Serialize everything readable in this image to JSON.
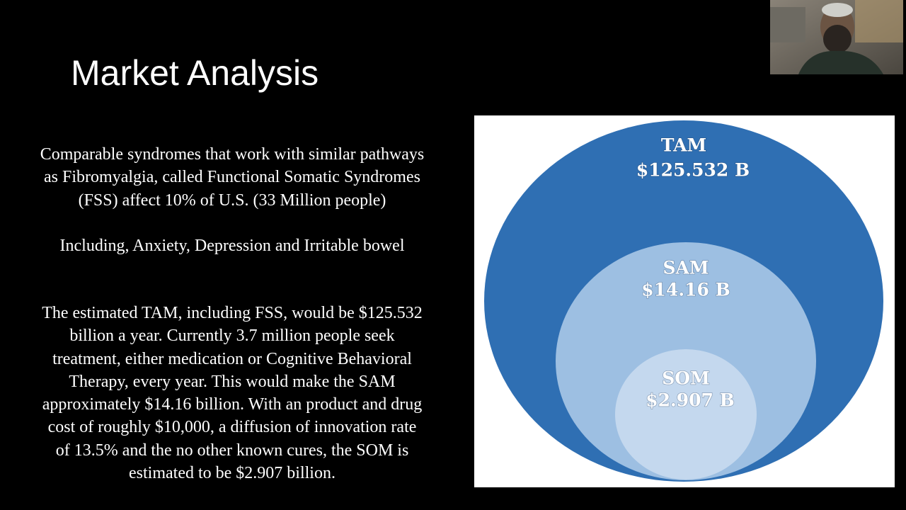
{
  "slide": {
    "title": "Market Analysis",
    "paragraphs": [
      [
        "Comparable syndromes that work with similar pathways",
        "as Fibromyalgia, called Functional Somatic Syndromes",
        "(FSS) affect 10% of U.S. (33 Million people)"
      ],
      [
        "Including, Anxiety, Depression and Irritable bowel"
      ],
      [
        "The estimated TAM, including FSS, would be $125.532",
        "billion a year. Currently 3.7 million people seek",
        "treatment, either medication or Cognitive Behavioral",
        "Therapy, every year. This would make the SAM",
        "approximately $14.16 billion. With an product and drug",
        "cost of roughly $10,000, a diffusion of innovation rate",
        "of 13.5% and the no other known cures, the SOM is",
        "estimated to be $2.907 billion."
      ]
    ],
    "diagram": {
      "tam": {
        "name": "TAM",
        "value": "$125.532 B"
      },
      "sam": {
        "name": "SAM",
        "value": "$14.16 B"
      },
      "som": {
        "name": "SOM",
        "value": "$2.907 B"
      }
    }
  }
}
